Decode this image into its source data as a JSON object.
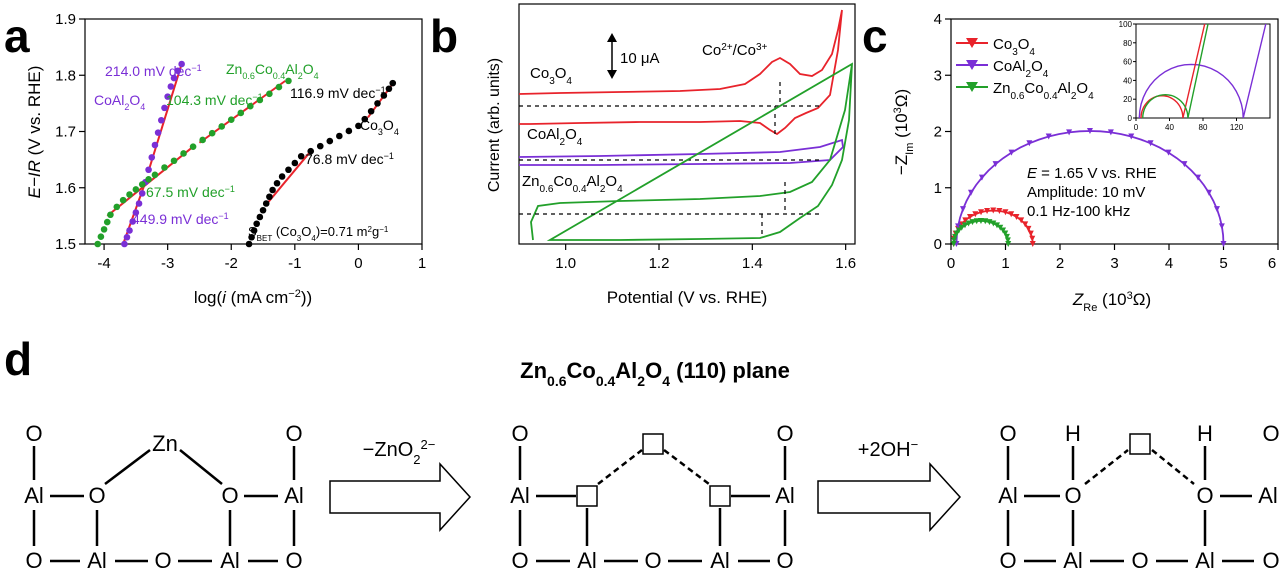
{
  "panels": {
    "a": "a",
    "b": "b",
    "c": "c",
    "d": "d"
  },
  "colors": {
    "red": "#e8232b",
    "purple": "#7a2fd6",
    "green": "#22a02a",
    "black": "#000000"
  },
  "chart_data": [
    {
      "type": "scatter",
      "panel": "a",
      "xlabel_pre": "log(",
      "xlabel_i": "i",
      "xlabel_post": " (mA cm",
      "xlabel_sup": "−2",
      "xlabel_end": "))",
      "ylabel_e": "E−IR",
      "ylabel_rest": " (V vs. RHE)",
      "xlim": [
        -4.3,
        1.0
      ],
      "ylim": [
        1.5,
        1.9
      ],
      "xticks": [
        "-4",
        "-3",
        "-2",
        "-1",
        "0",
        "1"
      ],
      "yticks": [
        "1.5",
        "1.6",
        "1.7",
        "1.8",
        "1.9"
      ],
      "series": [
        {
          "name": "Co3O4",
          "color": "#000000",
          "x": [
            -1.72,
            -1.68,
            -1.64,
            -1.6,
            -1.55,
            -1.5,
            -1.45,
            -1.4,
            -1.35,
            -1.28,
            -1.2,
            -1.1,
            -1.0,
            -0.9,
            -0.75,
            -0.6,
            -0.45,
            -0.3,
            -0.15,
            0.0,
            0.1,
            0.2,
            0.3,
            0.4,
            0.48,
            0.54
          ],
          "y": [
            1.5,
            1.512,
            1.524,
            1.536,
            1.548,
            1.56,
            1.572,
            1.584,
            1.596,
            1.608,
            1.62,
            1.632,
            1.644,
            1.656,
            1.665,
            1.674,
            1.683,
            1.692,
            1.701,
            1.71,
            1.722,
            1.736,
            1.75,
            1.764,
            1.776,
            1.786
          ]
        },
        {
          "name": "CoAl2O4",
          "color": "#7a2fd6",
          "x": [
            -3.68,
            -3.64,
            -3.6,
            -3.55,
            -3.5,
            -3.45,
            -3.4,
            -3.35,
            -3.3,
            -3.25,
            -3.2,
            -3.15,
            -3.1,
            -3.05,
            -3.0,
            -2.95,
            -2.9,
            -2.84,
            -2.78
          ],
          "y": [
            1.5,
            1.512,
            1.524,
            1.54,
            1.556,
            1.572,
            1.59,
            1.61,
            1.632,
            1.654,
            1.676,
            1.698,
            1.72,
            1.742,
            1.762,
            1.78,
            1.795,
            1.808,
            1.82
          ]
        },
        {
          "name": "Zn0.6Co0.4Al2O4",
          "color": "#22a02a",
          "x": [
            -4.1,
            -4.05,
            -4.0,
            -3.95,
            -3.9,
            -3.8,
            -3.7,
            -3.6,
            -3.5,
            -3.4,
            -3.3,
            -3.2,
            -3.05,
            -2.9,
            -2.75,
            -2.6,
            -2.45,
            -2.3,
            -2.15,
            -2.0,
            -1.85,
            -1.7,
            -1.55,
            -1.4,
            -1.25,
            -1.1
          ],
          "y": [
            1.5,
            1.513,
            1.526,
            1.539,
            1.552,
            1.566,
            1.578,
            1.588,
            1.597,
            1.606,
            1.615,
            1.623,
            1.636,
            1.648,
            1.661,
            1.673,
            1.685,
            1.697,
            1.709,
            1.721,
            1.733,
            1.745,
            1.756,
            1.767,
            1.779,
            1.79
          ]
        }
      ],
      "fits": [
        {
          "slope": "214.0 mV dec",
          "color": "#7a2fd6",
          "x": [
            -3.3,
            -2.78
          ],
          "y": [
            1.63,
            1.82
          ]
        },
        {
          "slope": "449.9 mV dec",
          "color": "#7a2fd6",
          "x": [
            -3.7,
            -3.35
          ],
          "y": [
            1.5,
            1.61
          ]
        },
        {
          "slope": "104.3 mV dec",
          "color": "#22a02a",
          "x": [
            -2.5,
            -1.15
          ],
          "y": [
            1.68,
            1.79
          ]
        },
        {
          "slope": "67.5 mV dec",
          "color": "#22a02a",
          "x": [
            -3.95,
            -2.6
          ],
          "y": [
            1.55,
            1.673
          ]
        },
        {
          "slope": "116.9 mV dec",
          "color": "#000000",
          "x": [
            0.15,
            0.56
          ],
          "y": [
            1.725,
            1.788
          ]
        },
        {
          "slope": "76.8 mV dec",
          "color": "#000000",
          "x": [
            -1.45,
            -0.75
          ],
          "y": [
            1.57,
            1.665
          ]
        }
      ],
      "labels": {
        "co_a": "CoAl",
        "co_a_sub": "2",
        "co_a_tail": "O",
        "co_a_sub2": "4",
        "zn_label": "Zn0.6Co0.4Al2O4",
        "co3": "Co",
        "co3_sub": "3",
        "co3_tail": "O",
        "co3_sub2": "4",
        "dec_sup": "−1",
        "sbet": "S",
        "sbet_sub": "BET",
        "sbet_rest": " (Co",
        "sbet_sub2": "3",
        "sbet_o": "O",
        "sbet_sub3": "4",
        "sbet_val": ")=0.71 m",
        "sbet_sup": "2",
        "sbet_g": "g",
        "sbet_sup2": "−1"
      }
    },
    {
      "type": "line",
      "panel": "b",
      "xlabel": "Potential (V vs. RHE)",
      "ylabel": "Current (arb. units)",
      "xlim": [
        0.9,
        1.62
      ],
      "xticks": [
        "1.0",
        "1.2",
        "1.4",
        "1.6"
      ],
      "scale_label": "10 μA",
      "peak_label": "Co",
      "peak_sup": "2+",
      "peak_mid": "/Co",
      "peak_sup2": "3+",
      "series_labels": [
        "Co3O4",
        "CoAl2O4",
        "Zn0.6Co0.4Al2O4"
      ]
    },
    {
      "type": "line",
      "panel": "c",
      "xlabel": "Z",
      "xlabel_sub": "Re",
      "xlabel_unit": " (10",
      "xlabel_sup": "3",
      "xlabel_end": "Ω)",
      "ylabel": "−Z",
      "ylabel_sub": "Im",
      "ylabel_unit": " (10",
      "ylabel_sup": "3",
      "ylabel_end": "Ω)",
      "xlim": [
        0,
        6
      ],
      "ylim": [
        0,
        4
      ],
      "xticks": [
        "0",
        "1",
        "2",
        "3",
        "4",
        "5",
        "6"
      ],
      "yticks": [
        "0",
        "1",
        "2",
        "3",
        "4"
      ],
      "series": [
        {
          "name": "Co3O4",
          "color": "#e8232b",
          "r0": 0.05,
          "r1": 1.5
        },
        {
          "name": "CoAl2O4",
          "color": "#7a2fd6",
          "r0": 0.1,
          "r1": 5.0
        },
        {
          "name": "Zn0.6Co0.4Al2O4",
          "color": "#22a02a",
          "r0": 0.05,
          "r1": 1.05
        }
      ],
      "conditions": {
        "e": "E",
        "e_rest": " = 1.65 V vs. RHE",
        "amp": "Amplitude: 10 mV",
        "freq": "0.1 Hz-100 kHz"
      },
      "inset": {
        "xticks": [
          "0",
          "40",
          "80",
          "120"
        ],
        "yticks": [
          "0",
          "20",
          "40",
          "60",
          "80",
          "100"
        ]
      }
    }
  ],
  "diagram": {
    "title_pre": "Zn",
    "title_s1": "0.6",
    "title_mid": "Co",
    "title_s2": "0.4",
    "title_al": "Al",
    "title_s3": "2",
    "title_o": "O",
    "title_s4": "4",
    "title_post": " (110) plane",
    "step1": "−ZnO",
    "step1_sub": "2",
    "step1_sup": "2−",
    "step2": "+2OH",
    "step2_sup": "−",
    "atoms": {
      "o": "O",
      "al": "Al",
      "zn": "Zn",
      "h": "H"
    }
  }
}
